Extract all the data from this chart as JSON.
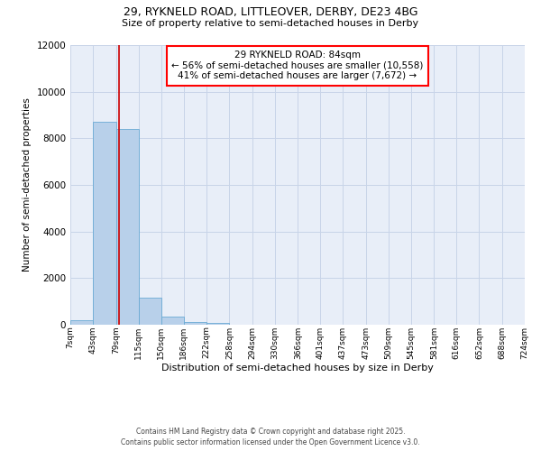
{
  "title_line1": "29, RYKNELD ROAD, LITTLEOVER, DERBY, DE23 4BG",
  "title_line2": "Size of property relative to semi-detached houses in Derby",
  "xlabel": "Distribution of semi-detached houses by size in Derby",
  "ylabel": "Number of semi-detached properties",
  "bin_edges": [
    7,
    43,
    79,
    115,
    150,
    186,
    222,
    258,
    294,
    330,
    366,
    401,
    437,
    473,
    509,
    545,
    581,
    616,
    652,
    688,
    724
  ],
  "bar_heights": [
    200,
    8700,
    8400,
    1150,
    350,
    100,
    80,
    0,
    0,
    0,
    0,
    0,
    0,
    0,
    0,
    0,
    0,
    0,
    0,
    0
  ],
  "bar_color": "#b8d0ea",
  "bar_edgecolor": "#6aaad4",
  "property_sqm": 84,
  "vline_color": "#cc0000",
  "annotation_line1": "29 RYKNELD ROAD: 84sqm",
  "annotation_line2": "← 56% of semi-detached houses are smaller (10,558)",
  "annotation_line3": "41% of semi-detached houses are larger (7,672) →",
  "annotation_box_color": "red",
  "ylim": [
    0,
    12000
  ],
  "yticks": [
    0,
    2000,
    4000,
    6000,
    8000,
    10000,
    12000
  ],
  "tick_labels": [
    "7sqm",
    "43sqm",
    "79sqm",
    "115sqm",
    "150sqm",
    "186sqm",
    "222sqm",
    "258sqm",
    "294sqm",
    "330sqm",
    "366sqm",
    "401sqm",
    "437sqm",
    "473sqm",
    "509sqm",
    "545sqm",
    "581sqm",
    "616sqm",
    "652sqm",
    "688sqm",
    "724sqm"
  ],
  "grid_color": "#c8d4e8",
  "bg_color": "#ffffff",
  "plot_bg_color": "#e8eef8",
  "footer_text": "Contains HM Land Registry data © Crown copyright and database right 2025.\nContains public sector information licensed under the Open Government Licence v3.0."
}
